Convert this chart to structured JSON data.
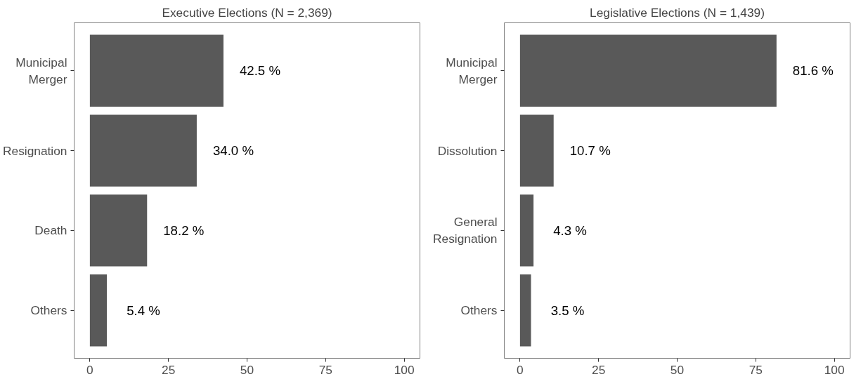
{
  "chart_data": [
    {
      "type": "bar",
      "orientation": "horizontal",
      "title": "Executive Elections (N = 2,369)",
      "categories": [
        "Municipal\nMerger",
        "Resignation",
        "Death",
        "Others"
      ],
      "values": [
        42.5,
        34.0,
        18.2,
        5.4
      ],
      "value_labels": [
        "42.5 %",
        "34.0 %",
        "18.2 %",
        "5.4 %"
      ],
      "color": "#595959",
      "xlim": [
        -5,
        105
      ],
      "xticks": [
        0,
        25,
        50,
        75,
        100
      ],
      "grid": false
    },
    {
      "type": "bar",
      "orientation": "horizontal",
      "title": "Legislative Elections (N = 1,439)",
      "categories": [
        "Municipal\nMerger",
        "Dissolution",
        "General\nResignation",
        "Others"
      ],
      "values": [
        81.6,
        10.7,
        4.3,
        3.5
      ],
      "value_labels": [
        "81.6 %",
        "10.7 %",
        "4.3 %",
        "3.5 %"
      ],
      "color": "#595959",
      "xlim": [
        -5,
        105
      ],
      "xticks": [
        0,
        25,
        50,
        75,
        100
      ],
      "grid": false
    }
  ]
}
